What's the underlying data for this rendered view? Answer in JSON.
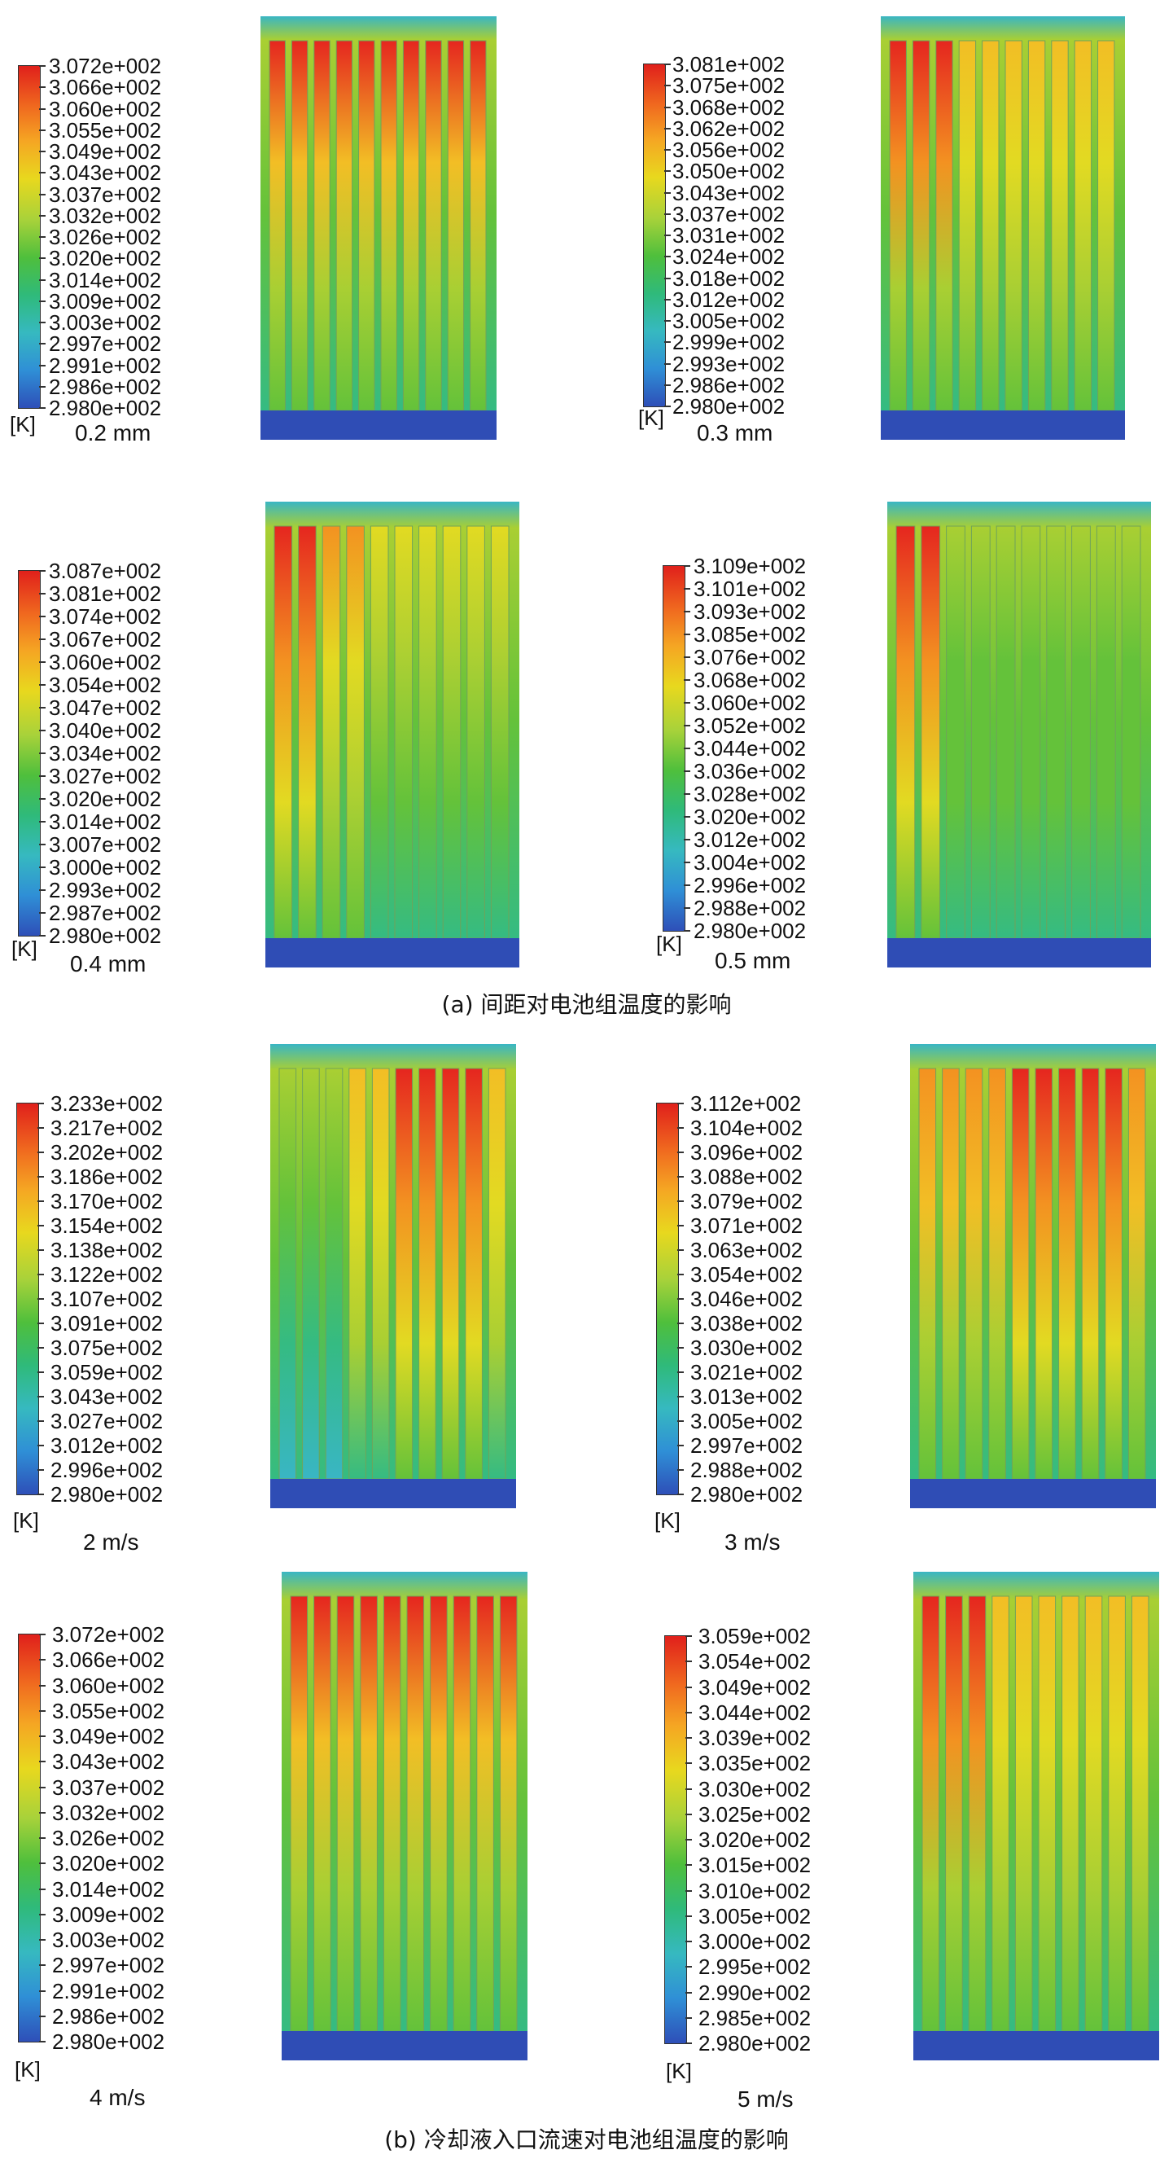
{
  "unit_label": "[K]",
  "captions": {
    "a": "(a) 间距对电池组温度的影响",
    "b": "(b) 冷却液入口流速对电池组温度的影响"
  },
  "panels": [
    {
      "label": "0.2 mm",
      "hot_zone": "top-uniform",
      "ticks": [
        "3.072e+002",
        "3.066e+002",
        "3.060e+002",
        "3.055e+002",
        "3.049e+002",
        "3.043e+002",
        "3.037e+002",
        "3.032e+002",
        "3.026e+002",
        "3.020e+002",
        "3.014e+002",
        "3.009e+002",
        "3.003e+002",
        "2.997e+002",
        "2.991e+002",
        "2.986e+002",
        "2.980e+002"
      ]
    },
    {
      "label": "0.3 mm",
      "hot_zone": "top-left",
      "ticks": [
        "3.081e+002",
        "3.075e+002",
        "3.068e+002",
        "3.062e+002",
        "3.056e+002",
        "3.050e+002",
        "3.043e+002",
        "3.037e+002",
        "3.031e+002",
        "3.024e+002",
        "3.018e+002",
        "3.012e+002",
        "3.005e+002",
        "2.999e+002",
        "2.993e+002",
        "2.986e+002",
        "2.980e+002"
      ]
    },
    {
      "label": "0.4 mm",
      "hot_zone": "left",
      "ticks": [
        "3.087e+002",
        "3.081e+002",
        "3.074e+002",
        "3.067e+002",
        "3.060e+002",
        "3.054e+002",
        "3.047e+002",
        "3.040e+002",
        "3.034e+002",
        "3.027e+002",
        "3.020e+002",
        "3.014e+002",
        "3.007e+002",
        "3.000e+002",
        "2.993e+002",
        "2.987e+002",
        "2.980e+002"
      ]
    },
    {
      "label": "0.5 mm",
      "hot_zone": "far-left",
      "ticks": [
        "3.109e+002",
        "3.101e+002",
        "3.093e+002",
        "3.085e+002",
        "3.076e+002",
        "3.068e+002",
        "3.060e+002",
        "3.052e+002",
        "3.044e+002",
        "3.036e+002",
        "3.028e+002",
        "3.020e+002",
        "3.012e+002",
        "3.004e+002",
        "2.996e+002",
        "2.988e+002",
        "2.980e+002"
      ]
    },
    {
      "label": "2 m/s",
      "hot_zone": "right",
      "ticks": [
        "3.233e+002",
        "3.217e+002",
        "3.202e+002",
        "3.186e+002",
        "3.170e+002",
        "3.154e+002",
        "3.138e+002",
        "3.122e+002",
        "3.107e+002",
        "3.091e+002",
        "3.075e+002",
        "3.059e+002",
        "3.043e+002",
        "3.027e+002",
        "3.012e+002",
        "2.996e+002",
        "2.980e+002"
      ]
    },
    {
      "label": "3 m/s",
      "hot_zone": "center-right",
      "ticks": [
        "3.112e+002",
        "3.104e+002",
        "3.096e+002",
        "3.088e+002",
        "3.079e+002",
        "3.071e+002",
        "3.063e+002",
        "3.054e+002",
        "3.046e+002",
        "3.038e+002",
        "3.030e+002",
        "3.021e+002",
        "3.013e+002",
        "3.005e+002",
        "2.997e+002",
        "2.988e+002",
        "2.980e+002"
      ]
    },
    {
      "label": "4 m/s",
      "hot_zone": "top-uniform",
      "ticks": [
        "3.072e+002",
        "3.066e+002",
        "3.060e+002",
        "3.055e+002",
        "3.049e+002",
        "3.043e+002",
        "3.037e+002",
        "3.032e+002",
        "3.026e+002",
        "3.020e+002",
        "3.014e+002",
        "3.009e+002",
        "3.003e+002",
        "2.997e+002",
        "2.991e+002",
        "2.986e+002",
        "2.980e+002"
      ]
    },
    {
      "label": "5 m/s",
      "hot_zone": "top-left",
      "ticks": [
        "3.059e+002",
        "3.054e+002",
        "3.049e+002",
        "3.044e+002",
        "3.039e+002",
        "3.035e+002",
        "3.030e+002",
        "3.025e+002",
        "3.020e+002",
        "3.015e+002",
        "3.010e+002",
        "3.005e+002",
        "3.000e+002",
        "2.995e+002",
        "2.990e+002",
        "2.985e+002",
        "2.980e+002"
      ]
    }
  ]
}
